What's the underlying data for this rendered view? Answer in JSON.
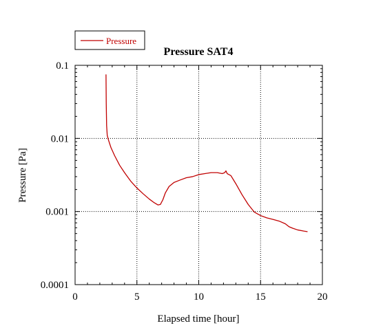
{
  "chart_data": {
    "type": "line",
    "title": "Pressure SAT4",
    "xlabel": "Elapsed time [hour]",
    "ylabel": "Pressure [Pa]",
    "xlim": [
      0,
      20
    ],
    "ylim": [
      0.0001,
      0.1
    ],
    "y_scale": "log",
    "grid": true,
    "legend_position": "top-left, above plot",
    "x_ticks": [
      "0",
      "5",
      "10",
      "15",
      "20"
    ],
    "y_ticks": [
      "0.0001",
      "0.001",
      "0.01",
      "0.1"
    ],
    "series": [
      {
        "name": "Pressure",
        "color": "#c00000",
        "x": [
          2.5,
          2.52,
          2.55,
          2.6,
          2.7,
          2.9,
          3.2,
          3.6,
          4.0,
          4.5,
          5.0,
          5.5,
          6.0,
          6.4,
          6.7,
          6.9,
          7.1,
          7.3,
          7.6,
          8.0,
          8.5,
          9.0,
          9.5,
          10.0,
          10.5,
          11.0,
          11.5,
          11.9,
          12.1,
          12.2,
          12.3,
          12.6,
          13.0,
          13.5,
          14.0,
          14.5,
          15.0,
          15.5,
          16.0,
          16.5,
          17.0,
          17.3,
          17.6,
          18.0,
          18.5,
          18.8
        ],
        "y": [
          0.075,
          0.03,
          0.015,
          0.011,
          0.0095,
          0.0075,
          0.0058,
          0.0043,
          0.0034,
          0.0026,
          0.0021,
          0.00175,
          0.00148,
          0.00132,
          0.00123,
          0.00125,
          0.00145,
          0.0018,
          0.0022,
          0.0025,
          0.0027,
          0.0029,
          0.003,
          0.0032,
          0.0033,
          0.0034,
          0.0034,
          0.0033,
          0.0034,
          0.0036,
          0.0033,
          0.0031,
          0.0024,
          0.0017,
          0.00125,
          0.00098,
          0.00088,
          0.00082,
          0.00078,
          0.00074,
          0.00068,
          0.00062,
          0.00059,
          0.00056,
          0.00054,
          0.00053
        ]
      }
    ]
  }
}
